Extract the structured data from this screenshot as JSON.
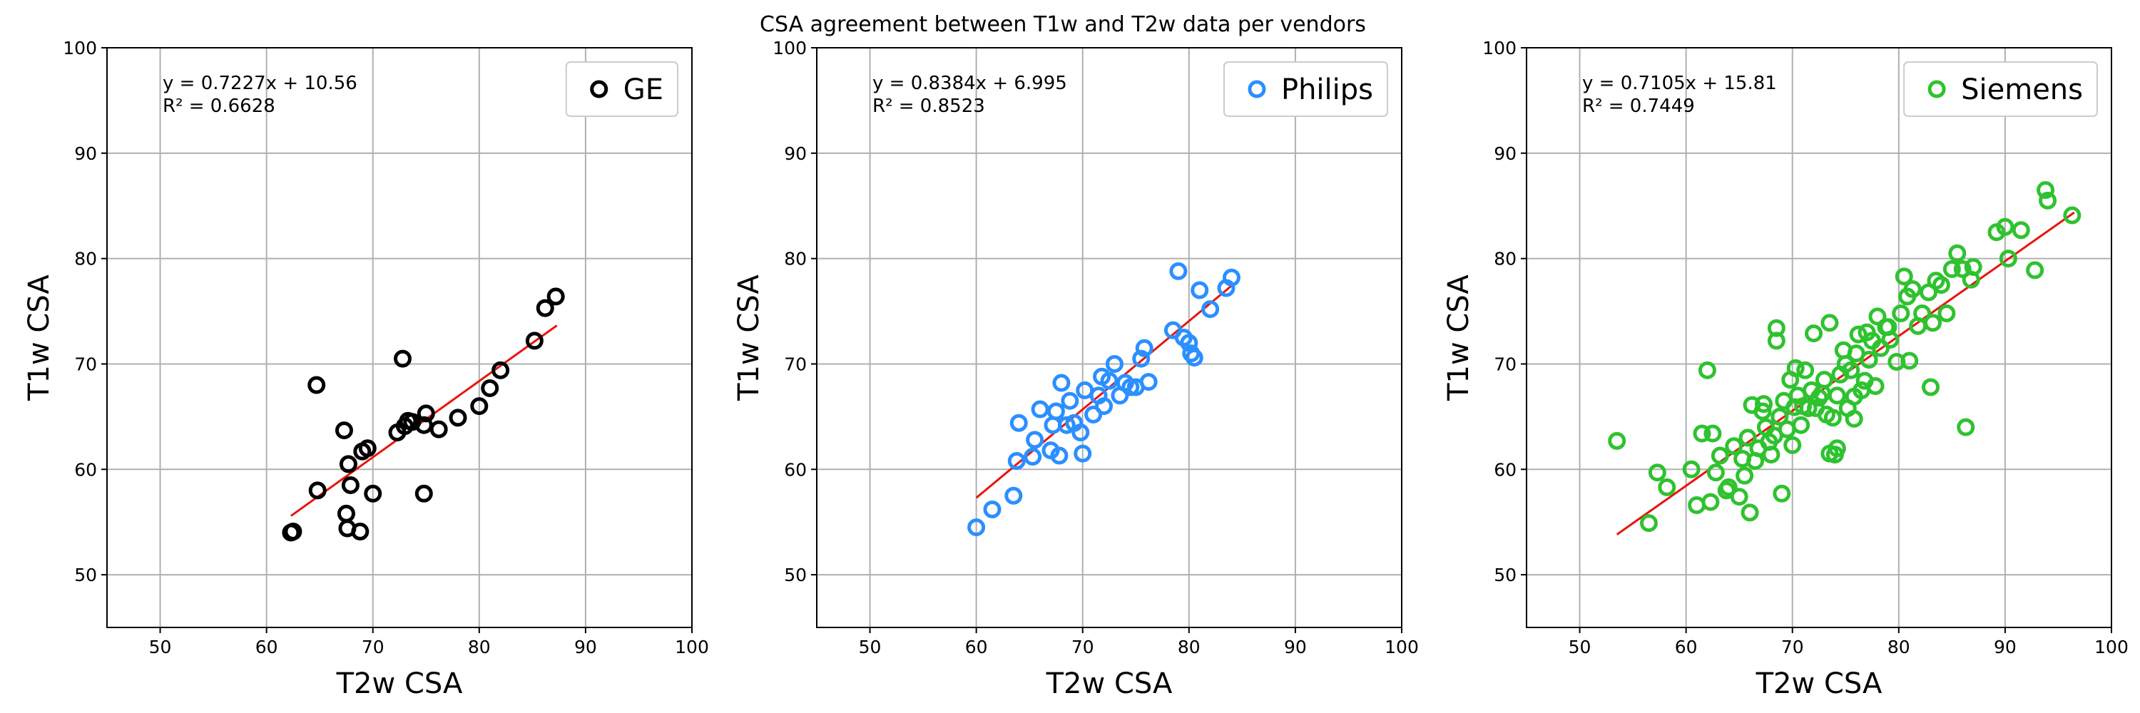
{
  "suptitle": "CSA agreement between T1w and T2w data per vendors",
  "chart_data": [
    {
      "type": "scatter",
      "legend": "GE",
      "legend_position": "top-right",
      "color": "#000000",
      "fit_color": "#e8150f",
      "xlabel": "T2w CSA",
      "ylabel": "T1w CSA",
      "xlim": [
        45,
        100
      ],
      "ylim": [
        45,
        100
      ],
      "xticks": [
        50,
        60,
        70,
        80,
        90,
        100
      ],
      "yticks": [
        50,
        60,
        70,
        80,
        90,
        100
      ],
      "grid": true,
      "equation": "y = 0.7227x + 10.56",
      "r2": "R² = 0.6628",
      "fit": {
        "slope": 0.7227,
        "intercept": 10.56,
        "x_range": [
          62.3,
          87.3
        ]
      },
      "x": [
        62.3,
        62.5,
        64.7,
        64.8,
        67.3,
        67.5,
        67.6,
        67.7,
        67.9,
        68.8,
        69.0,
        69.5,
        70.0,
        72.3,
        72.8,
        73.0,
        73.3,
        73.7,
        74.8,
        74.8,
        75.0,
        76.2,
        78.0,
        80.0,
        81.0,
        82.0,
        85.2,
        86.2,
        87.2
      ],
      "y": [
        54.0,
        54.1,
        68.0,
        58.0,
        63.7,
        55.8,
        54.4,
        60.5,
        58.5,
        54.1,
        61.7,
        62.0,
        57.7,
        63.5,
        70.5,
        64.1,
        64.6,
        64.5,
        57.7,
        64.2,
        65.3,
        63.8,
        64.9,
        66.0,
        67.7,
        69.4,
        72.2,
        75.3,
        76.4
      ]
    },
    {
      "type": "scatter",
      "legend": "Philips",
      "legend_position": "top-right",
      "color": "#2b8fff",
      "fit_color": "#e8150f",
      "xlabel": "T2w CSA",
      "ylabel": "T1w CSA",
      "xlim": [
        45,
        100
      ],
      "ylim": [
        45,
        100
      ],
      "xticks": [
        50,
        60,
        70,
        80,
        90,
        100
      ],
      "yticks": [
        50,
        60,
        70,
        80,
        90,
        100
      ],
      "grid": true,
      "equation": "y = 0.8384x + 6.995",
      "r2": "R² = 0.8523",
      "fit": {
        "slope": 0.8384,
        "intercept": 6.995,
        "x_range": [
          60.0,
          84.0
        ]
      },
      "x": [
        60.0,
        61.5,
        63.5,
        63.8,
        64.0,
        65.3,
        65.5,
        66.0,
        67.0,
        67.2,
        67.5,
        67.8,
        68.0,
        68.5,
        68.8,
        69.2,
        69.8,
        70.0,
        70.2,
        71.0,
        71.5,
        71.8,
        72.0,
        72.5,
        73.0,
        73.5,
        74.0,
        74.5,
        75.0,
        75.5,
        75.8,
        76.2,
        78.5,
        79.0,
        79.5,
        80.0,
        80.2,
        80.5,
        81.0,
        82.0,
        83.5,
        84.0
      ],
      "y": [
        54.5,
        56.2,
        57.5,
        60.8,
        64.4,
        61.2,
        62.8,
        65.7,
        61.8,
        64.2,
        65.5,
        61.3,
        68.2,
        64.2,
        66.5,
        64.4,
        63.5,
        61.5,
        67.5,
        65.2,
        67.0,
        68.8,
        66.0,
        68.4,
        70.0,
        67.0,
        68.2,
        67.8,
        67.8,
        70.5,
        71.5,
        68.3,
        73.2,
        78.8,
        72.5,
        72.0,
        71.0,
        70.6,
        77.0,
        75.2,
        77.2,
        78.2
      ]
    },
    {
      "type": "scatter",
      "legend": "Siemens",
      "legend_position": "top-right",
      "color": "#2fc22f",
      "fit_color": "#e8150f",
      "xlabel": "T2w CSA",
      "ylabel": "T1w CSA",
      "xlim": [
        45,
        100
      ],
      "ylim": [
        45,
        100
      ],
      "xticks": [
        50,
        60,
        70,
        80,
        90,
        100
      ],
      "yticks": [
        50,
        60,
        70,
        80,
        90,
        100
      ],
      "grid": true,
      "equation": "y = 0.7105x + 15.81",
      "r2": "R² = 0.7449",
      "fit": {
        "slope": 0.7105,
        "intercept": 15.81,
        "x_range": [
          53.5,
          96.5
        ]
      },
      "x": [
        53.5,
        56.5,
        57.3,
        58.2,
        60.5,
        61.0,
        61.5,
        62.0,
        62.3,
        62.8,
        63.2,
        63.8,
        64.0,
        64.5,
        65.0,
        65.3,
        65.5,
        65.8,
        66.0,
        66.2,
        66.5,
        66.8,
        67.2,
        67.5,
        67.8,
        68.0,
        68.3,
        68.5,
        68.8,
        69.0,
        69.2,
        69.5,
        69.8,
        70.0,
        70.2,
        70.5,
        70.8,
        71.0,
        71.2,
        71.5,
        71.8,
        72.0,
        72.2,
        72.5,
        72.8,
        73.0,
        73.2,
        73.5,
        73.8,
        74.0,
        74.2,
        74.5,
        74.8,
        75.0,
        75.2,
        75.5,
        75.8,
        76.0,
        76.2,
        76.5,
        76.8,
        77.0,
        77.2,
        77.5,
        77.8,
        78.0,
        78.3,
        78.8,
        79.2,
        79.8,
        80.2,
        80.5,
        80.8,
        81.0,
        81.3,
        81.8,
        82.2,
        82.8,
        83.2,
        83.5,
        84.0,
        84.5,
        85.0,
        85.5,
        86.0,
        86.3,
        86.8,
        87.0,
        89.2,
        90.0,
        90.3,
        91.5,
        92.8,
        93.8,
        94.0,
        96.3,
        68.5,
        74.2,
        73.5,
        75.8,
        79.0,
        70.3,
        67.3,
        62.5,
        83.0
      ],
      "y": [
        62.7,
        54.9,
        59.7,
        58.3,
        60.0,
        56.6,
        63.4,
        69.4,
        56.9,
        59.7,
        61.3,
        58.0,
        58.3,
        62.2,
        57.4,
        61.0,
        59.4,
        63.0,
        55.9,
        66.1,
        60.8,
        62.0,
        65.5,
        64.0,
        62.6,
        61.4,
        63.2,
        73.4,
        65.0,
        57.7,
        66.5,
        63.8,
        68.5,
        62.3,
        65.9,
        67.0,
        64.2,
        66.0,
        69.4,
        65.8,
        67.5,
        72.9,
        65.8,
        66.8,
        67.2,
        68.5,
        65.2,
        73.9,
        64.9,
        61.4,
        67.0,
        69.0,
        71.3,
        70.0,
        65.8,
        69.4,
        66.9,
        71.0,
        72.8,
        67.5,
        68.4,
        73.0,
        70.4,
        72.2,
        67.9,
        74.5,
        71.5,
        73.5,
        72.3,
        70.2,
        74.8,
        78.3,
        76.4,
        70.3,
        77.1,
        73.6,
        74.8,
        76.8,
        73.9,
        77.9,
        77.5,
        74.8,
        79.0,
        80.5,
        79.0,
        64.0,
        78.0,
        79.2,
        82.5,
        83.0,
        80.0,
        82.7,
        78.9,
        86.5,
        85.5,
        84.1,
        72.2,
        62.0,
        61.5,
        64.8,
        73.5,
        69.6,
        66.2,
        63.4,
        67.8
      ]
    }
  ]
}
